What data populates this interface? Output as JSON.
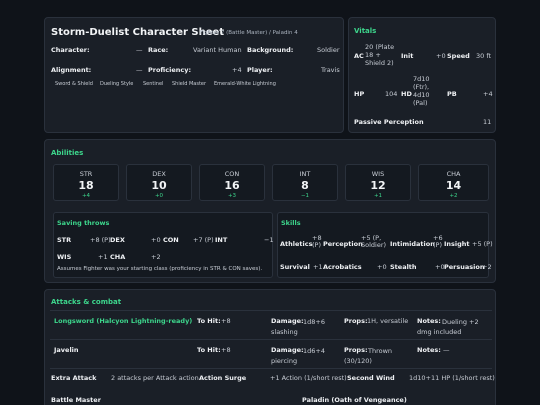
{
  "header": {
    "title": "Storm-Duelist Character Sheet",
    "subtitle": "Fighter 7 (Battle Master) / Paladin 4",
    "character_label": "Character:",
    "character_value": "—",
    "race_label": "Race:",
    "race_value": "Variant Human",
    "background_label": "Background:",
    "background_value": "Soldier",
    "alignment_label": "Alignment:",
    "alignment_value": "—",
    "proficiency_label": "Proficiency:",
    "proficiency_value": "+4",
    "player_label": "Player:",
    "player_value": "Travis",
    "tags": [
      "Sword & Shield",
      "Dueling Style",
      "Sentinel",
      "Shield Master",
      "Emerald-White Lightning"
    ]
  },
  "vitals": {
    "title": "Vitals",
    "ac_label": "AC",
    "ac_value": "20 (Plate 18 + Shield 2)",
    "init_label": "Init",
    "init_value": "+0",
    "speed_label": "Speed",
    "speed_value": "30 ft",
    "hp_label": "HP",
    "hp_value": "104",
    "hd_label": "HD",
    "hd_value": "7d10 (Ftr), 4d10 (Pal)",
    "pb_label": "PB",
    "pb_value": "+4",
    "pp_label": "Passive Perception",
    "pp_value": "11"
  },
  "abilities": {
    "title": "Abilities",
    "scores": [
      {
        "name": "STR",
        "score": "18",
        "mod": "+4"
      },
      {
        "name": "DEX",
        "score": "10",
        "mod": "+0"
      },
      {
        "name": "CON",
        "score": "16",
        "mod": "+3"
      },
      {
        "name": "INT",
        "score": "8",
        "mod": "−1"
      },
      {
        "name": "WIS",
        "score": "12",
        "mod": "+1"
      },
      {
        "name": "CHA",
        "score": "14",
        "mod": "+2"
      }
    ],
    "saves_title": "Saving throws",
    "saves": [
      {
        "name": "STR",
        "value": "+8 (P)"
      },
      {
        "name": "DEX",
        "value": "+0"
      },
      {
        "name": "CON",
        "value": "+7 (P)"
      },
      {
        "name": "INT",
        "value": "−1"
      },
      {
        "name": "WIS",
        "value": "+1"
      },
      {
        "name": "CHA",
        "value": "+2"
      }
    ],
    "saves_note": "Assumes Fighter was your starting class (proficiency in STR & CON saves).",
    "skills_title": "Skills",
    "skills": [
      {
        "name": "Athletics",
        "value": "+8 (P)"
      },
      {
        "name": "Perception",
        "value": "+5 (P, Soldier)"
      },
      {
        "name": "Intimidation",
        "value": "+6 (P)"
      },
      {
        "name": "Insight",
        "value": "+5 (P)"
      },
      {
        "name": "Survival",
        "value": "+1"
      },
      {
        "name": "Acrobatics",
        "value": "+0"
      },
      {
        "name": "Stealth",
        "value": "+0"
      },
      {
        "name": "Persuasion",
        "value": "+2"
      }
    ]
  },
  "attacks": {
    "title": "Attacks & combat",
    "rows": [
      {
        "name": "Longsword (Halcyon Lightning-ready)",
        "tohit_label": "To Hit:",
        "tohit": "+8",
        "damage_label": "Damage:",
        "damage": "1d8+6 slashing",
        "props_label": "Props:",
        "props": "1H, versatile",
        "notes_label": "Notes:",
        "notes": "Dueling +2 dmg included"
      },
      {
        "name": "Javelin",
        "tohit_label": "To Hit:",
        "tohit": "+8",
        "damage_label": "Damage:",
        "damage": "1d6+4 piercing",
        "props_label": "Props:",
        "props": "Thrown (30/120)",
        "notes_label": "Notes:",
        "notes": "—"
      }
    ],
    "extra_attack_label": "Extra Attack",
    "extra_attack_value": "2 attacks per Attack action",
    "action_surge_label": "Action Surge",
    "action_surge_value": "+1 Action (1/short rest)",
    "second_wind_label": "Second Wind",
    "second_wind_value": "1d10+11 HP (1/short rest)",
    "battle_master_label": "Battle Master",
    "paladin_label": "Paladin (Oath of Vengeance)"
  }
}
